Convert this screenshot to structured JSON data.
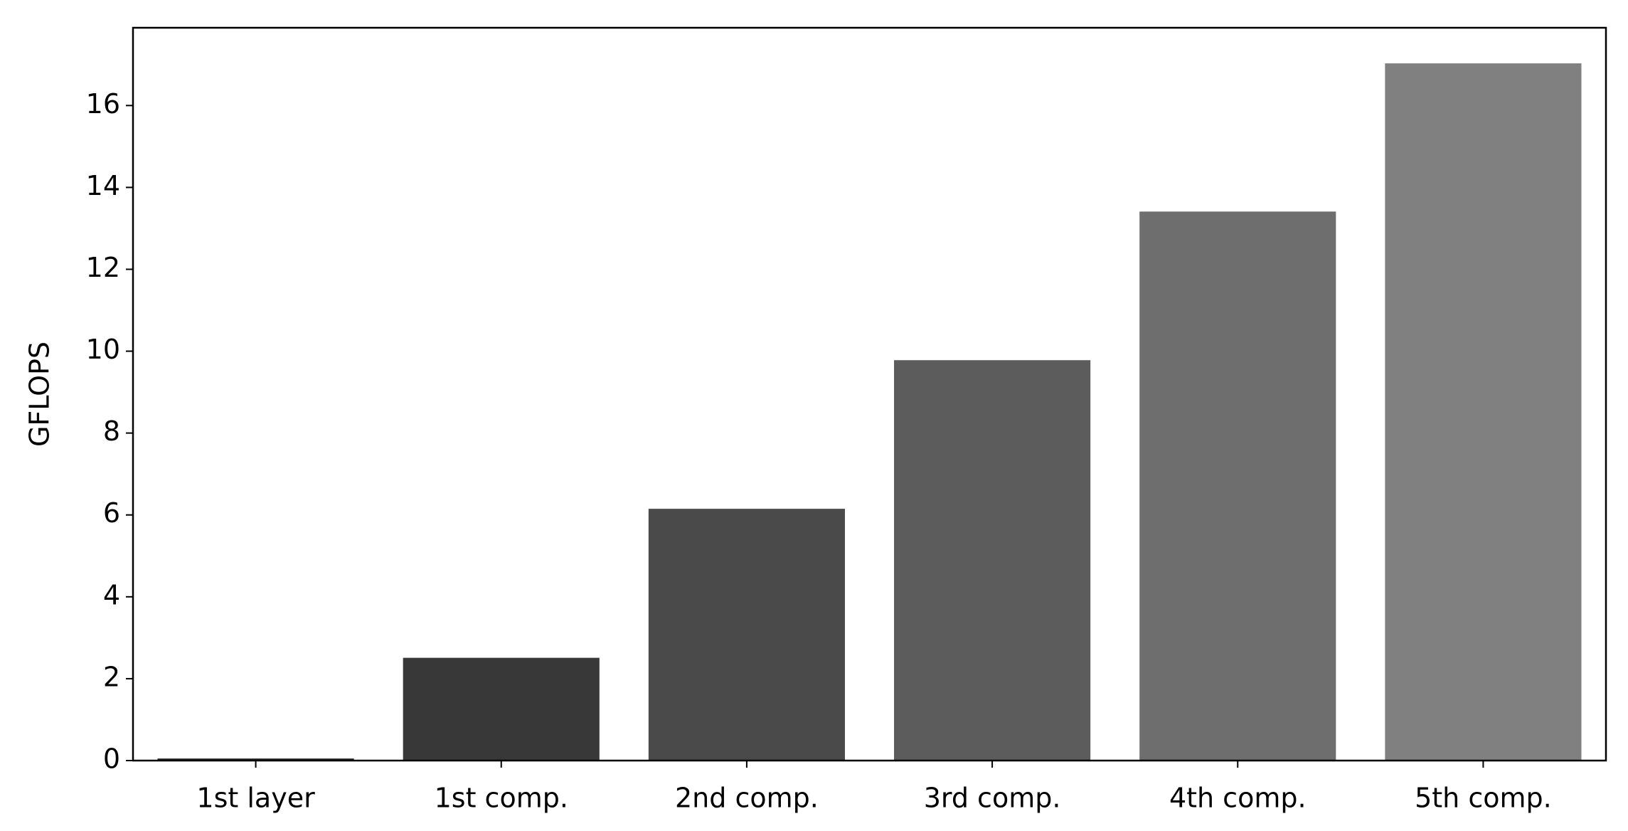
{
  "chart_data": {
    "type": "bar",
    "y_label": "GFLOPS",
    "categories": [
      "1st layer",
      "1st comp.",
      "2nd comp.",
      "3rd comp.",
      "4th comp.",
      "5th comp."
    ],
    "values": [
      0.05,
      2.51,
      6.15,
      9.78,
      13.41,
      17.03
    ],
    "colors": [
      "#262626",
      "#383838",
      "#4a4a4a",
      "#5c5c5c",
      "#6e6e6e",
      "#808080"
    ],
    "ylim": [
      0,
      17.9
    ],
    "yticks": [
      0,
      2,
      4,
      6,
      8,
      10,
      12,
      14,
      16
    ],
    "grid": false
  }
}
